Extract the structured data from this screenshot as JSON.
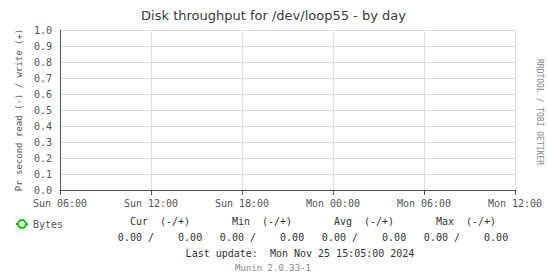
{
  "chart_data": {
    "type": "line",
    "title": "Disk throughput for /dev/loop55 - by day",
    "ylabel": "Pr second read (-) / write (+)",
    "categories": [
      "Sun 06:00",
      "Sun 12:00",
      "Sun 18:00",
      "Mon 00:00",
      "Mon 06:00",
      "Mon 12:00"
    ],
    "series": [
      {
        "name": "Bytes",
        "color": "#00cc00",
        "values": [
          null,
          null,
          null,
          null,
          null,
          null
        ]
      }
    ],
    "ylim": [
      0.0,
      1.0
    ],
    "yticks": [
      {
        "value": 0,
        "label": "0.0"
      },
      0.1,
      0.2,
      0.3,
      0.4,
      0.5,
      0.6,
      0.7,
      0.8,
      0.9,
      {
        "value": 1,
        "label": "1.0"
      }
    ],
    "grid": true,
    "legend": "lower left",
    "annotations": [
      "RRDTOOL / TOBI OETIKER",
      "Cur  (-/+)",
      "Min  (-/+)",
      "Avg  (-/+)",
      "Max  (-/+)",
      "0.00 /    0.00",
      "0.00 /    0.00",
      "0.00 /    0.00",
      "0.00 /    0.00",
      "Last update:  Mon Nov 25 15:05:00 2024",
      "Munin 2.0.33-1"
    ]
  }
}
